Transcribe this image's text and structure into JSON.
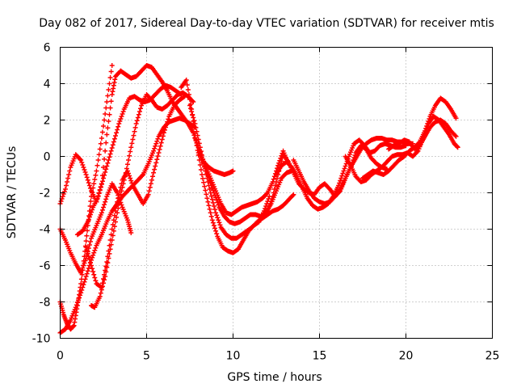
{
  "chart_data": {
    "type": "scatter",
    "title": "Day 082 of 2017, Sidereal Day-to-day VTEC variation (SDTVAR) for receiver mtis",
    "xlabel": "GPS time / hours",
    "ylabel": "SDTVAR / TECUs",
    "xlim": [
      0,
      25
    ],
    "ylim": [
      -10,
      6
    ],
    "xticks": [
      0,
      5,
      10,
      15,
      20,
      25
    ],
    "yticks": [
      -10,
      -8,
      -6,
      -4,
      -2,
      0,
      2,
      4,
      6
    ],
    "grid": true,
    "marker": "+",
    "color": "#ff0000",
    "series": [
      {
        "x": [
          0.0,
          0.3,
          0.6,
          0.9,
          1.2,
          1.5,
          1.8,
          2.1,
          2.4,
          2.7,
          3.0,
          3.2,
          3.5
        ],
        "y": [
          -2.6,
          -1.8,
          -0.6,
          0.1,
          -0.2,
          -1.0,
          -1.9,
          -2.5,
          -1.5,
          1.2,
          3.4,
          4.4,
          4.7
        ]
      },
      {
        "x": [
          3.5,
          3.8,
          4.1,
          4.4,
          4.7,
          5.0,
          5.3,
          5.6,
          5.9,
          6.2,
          6.5,
          6.8,
          7.1,
          7.4,
          7.7,
          8.0,
          8.3,
          8.6,
          8.9,
          9.2,
          9.5,
          9.8,
          10.0
        ],
        "y": [
          4.7,
          4.5,
          4.3,
          4.4,
          4.7,
          5.0,
          4.9,
          4.5,
          4.1,
          3.6,
          3.0,
          2.6,
          2.2,
          1.8,
          1.3,
          0.5,
          -0.3,
          -0.6,
          -0.8,
          -0.9,
          -1.0,
          -0.9,
          -0.8
        ]
      },
      {
        "x": [
          0.0,
          0.3,
          0.6,
          0.9,
          1.2,
          1.5,
          1.8,
          2.1,
          2.4,
          2.7,
          3.0,
          3.3,
          3.6,
          3.9,
          4.1
        ],
        "y": [
          -4.0,
          -4.6,
          -5.3,
          -5.9,
          -6.4,
          -5.6,
          -4.5,
          -3.8,
          -3.1,
          -2.2,
          -1.5,
          -2.0,
          -2.8,
          -3.5,
          -4.2
        ]
      },
      {
        "x": [
          1.0,
          1.3,
          1.6,
          1.9,
          2.2,
          2.5,
          2.8,
          3.1,
          3.4,
          3.7,
          4.0,
          4.3,
          4.6,
          4.9,
          5.2,
          5.5,
          5.8,
          6.1,
          6.4,
          6.7,
          7.0
        ],
        "y": [
          -4.3,
          -4.1,
          -3.6,
          -2.8,
          -2.2,
          -1.2,
          -0.2,
          0.8,
          1.8,
          2.6,
          3.2,
          3.3,
          3.1,
          3.0,
          3.1,
          3.4,
          3.7,
          3.9,
          3.8,
          3.6,
          3.4
        ]
      },
      {
        "x": [
          0.0,
          0.2,
          0.4,
          0.6,
          0.8,
          1.0,
          1.2,
          1.4,
          1.6,
          1.8,
          2.1,
          2.4,
          2.7,
          3.0
        ],
        "y": [
          -8.0,
          -8.7,
          -9.2,
          -9.5,
          -9.3,
          -8.2,
          -7.0,
          -5.5,
          -3.8,
          -2.2,
          -0.8,
          1.0,
          3.0,
          5.0
        ]
      },
      {
        "x": [
          0.0,
          0.3,
          0.6,
          0.9,
          1.2,
          1.5,
          1.8,
          2.1,
          2.4,
          2.7,
          3.0,
          3.3,
          3.6,
          3.9,
          4.2,
          4.5,
          4.8,
          5.1,
          5.4,
          5.7,
          6.0,
          6.3,
          6.6,
          6.9,
          7.2,
          7.5,
          7.8
        ],
        "y": [
          -9.7,
          -9.5,
          -9.0,
          -8.3,
          -7.5,
          -6.6,
          -5.7,
          -4.9,
          -4.3,
          -3.6,
          -3.0,
          -2.6,
          -2.2,
          -1.9,
          -1.6,
          -1.3,
          -1.0,
          -0.4,
          0.3,
          1.1,
          1.6,
          1.9,
          2.0,
          2.1,
          2.0,
          1.8,
          1.6
        ]
      },
      {
        "x": [
          1.8,
          2.0,
          2.3,
          2.6,
          2.9,
          3.2,
          3.5,
          3.8,
          4.1,
          4.4,
          4.7,
          5.0,
          5.3,
          5.6,
          5.9,
          6.2,
          6.5,
          6.8,
          7.1,
          7.4,
          7.7
        ],
        "y": [
          -8.2,
          -8.3,
          -7.7,
          -6.6,
          -5.1,
          -3.6,
          -2.1,
          -0.9,
          0.5,
          1.8,
          2.8,
          3.4,
          3.1,
          2.7,
          2.6,
          2.8,
          3.1,
          3.4,
          3.5,
          3.3,
          3.0
        ]
      },
      {
        "x": [
          1.5,
          1.8,
          2.1,
          2.4,
          2.7,
          3.0,
          3.3,
          3.6,
          3.9,
          4.2,
          4.5,
          4.8,
          5.1,
          5.4,
          5.7,
          6.0,
          6.3,
          6.6,
          6.9,
          7.2
        ],
        "y": [
          -5.0,
          -6.0,
          -7.0,
          -7.2,
          -5.8,
          -4.0,
          -2.5,
          -1.3,
          -0.8,
          -1.6,
          -2.1,
          -2.6,
          -2.1,
          -0.9,
          0.2,
          1.3,
          2.2,
          2.8,
          3.1,
          3.3
        ]
      },
      {
        "x": [
          7.0,
          7.3,
          7.6,
          7.9,
          8.2,
          8.5,
          8.8,
          9.1,
          9.4,
          9.7,
          10.0,
          10.3,
          10.6,
          10.9,
          11.2,
          11.5,
          11.8,
          12.1
        ],
        "y": [
          3.8,
          4.2,
          2.6,
          0.6,
          -1.0,
          -2.3,
          -3.5,
          -4.4,
          -5.0,
          -5.2,
          -5.3,
          -5.1,
          -4.6,
          -4.1,
          -3.8,
          -3.6,
          -3.0,
          -2.2
        ]
      },
      {
        "x": [
          7.5,
          7.8,
          8.1,
          8.4,
          8.7,
          9.0,
          9.3,
          9.6,
          9.9,
          10.2,
          10.5,
          10.8,
          11.1,
          11.4,
          11.7,
          12.0,
          12.3,
          12.6,
          12.9,
          13.2,
          13.5
        ],
        "y": [
          2.8,
          1.8,
          0.5,
          -0.8,
          -2.0,
          -3.1,
          -3.9,
          -4.3,
          -4.5,
          -4.5,
          -4.3,
          -4.1,
          -3.9,
          -3.6,
          -3.4,
          -3.2,
          -3.0,
          -2.9,
          -2.7,
          -2.4,
          -2.1
        ]
      },
      {
        "x": [
          7.8,
          8.1,
          8.4,
          8.7,
          9.0,
          9.3,
          9.6,
          9.9,
          10.2,
          10.5,
          10.8,
          11.1,
          11.4,
          11.7,
          12.0,
          12.3,
          12.6,
          12.9,
          13.2
        ],
        "y": [
          1.0,
          0.2,
          -0.5,
          -1.2,
          -1.9,
          -2.6,
          -3.1,
          -3.2,
          -3.0,
          -2.8,
          -2.7,
          -2.6,
          -2.5,
          -2.3,
          -2.0,
          -1.4,
          -0.5,
          0.3,
          -0.4
        ]
      },
      {
        "x": [
          8.0,
          8.3,
          8.6,
          8.9,
          9.2,
          9.5,
          9.8,
          10.1,
          10.4,
          10.7,
          11.0,
          11.3,
          11.6,
          11.9,
          12.2,
          12.5,
          12.8,
          13.1,
          13.4
        ],
        "y": [
          0.2,
          -0.4,
          -1.2,
          -2.0,
          -2.8,
          -3.3,
          -3.6,
          -3.7,
          -3.6,
          -3.4,
          -3.2,
          -3.2,
          -3.3,
          -3.1,
          -2.6,
          -1.9,
          -1.2,
          -0.9,
          -0.8
        ]
      },
      {
        "x": [
          12.0,
          12.3,
          12.6,
          12.9,
          13.2,
          13.5,
          13.8,
          14.1,
          14.4,
          14.7,
          15.0,
          15.3,
          15.6,
          15.9,
          16.2,
          16.5,
          16.8,
          17.1,
          17.4,
          17.7,
          18.0,
          18.3,
          18.6,
          18.9
        ],
        "y": [
          -3.0,
          -2.2,
          -1.0,
          0.1,
          -0.3,
          -0.9,
          -1.5,
          -1.8,
          -2.0,
          -2.1,
          -1.7,
          -1.5,
          -1.8,
          -2.2,
          -1.9,
          -1.2,
          -0.6,
          0.2,
          0.6,
          0.4,
          -0.1,
          -0.4,
          -0.6,
          -0.7
        ]
      },
      {
        "x": [
          12.5,
          12.8,
          13.1,
          13.4,
          13.7,
          14.0,
          14.3,
          14.6,
          14.9,
          15.2,
          15.5,
          15.8,
          16.1,
          16.4,
          16.7,
          17.0,
          17.3,
          17.6,
          17.9,
          18.2,
          18.5,
          18.8,
          19.1,
          19.4,
          19.7,
          20.0
        ],
        "y": [
          -1.0,
          -0.5,
          -0.3,
          -0.6,
          -1.1,
          -1.7,
          -2.3,
          -2.7,
          -2.9,
          -2.8,
          -2.6,
          -2.2,
          -1.6,
          -0.8,
          0.0,
          0.7,
          0.9,
          0.6,
          0.2,
          0.3,
          0.6,
          0.7,
          0.6,
          0.5,
          0.5,
          0.6
        ]
      },
      {
        "x": [
          13.5,
          13.8,
          14.1,
          14.4,
          14.7,
          15.0,
          15.3,
          15.6,
          15.9,
          16.2,
          16.5,
          16.8,
          17.1,
          17.4,
          17.7,
          18.0,
          18.3,
          18.6,
          18.9,
          19.2,
          19.5,
          19.8,
          20.1,
          20.4
        ],
        "y": [
          -0.2,
          -0.8,
          -1.4,
          -1.9,
          -2.3,
          -2.5,
          -2.6,
          -2.5,
          -2.2,
          -1.8,
          -1.2,
          -0.6,
          -0.1,
          0.4,
          0.7,
          0.9,
          1.0,
          1.0,
          0.9,
          0.9,
          0.8,
          0.8,
          0.7,
          0.7
        ]
      },
      {
        "x": [
          16.5,
          16.8,
          17.1,
          17.4,
          17.7,
          18.0,
          18.3,
          18.6,
          18.9,
          19.2,
          19.5,
          19.8,
          20.1,
          20.4,
          20.7,
          21.0,
          21.3,
          21.6,
          21.9,
          22.2,
          22.5,
          22.8,
          23.0
        ],
        "y": [
          0.0,
          -0.5,
          -1.1,
          -1.4,
          -1.3,
          -1.0,
          -0.8,
          -0.6,
          -0.3,
          0.0,
          0.1,
          0.1,
          0.2,
          0.0,
          0.3,
          1.0,
          1.8,
          2.2,
          2.0,
          1.6,
          1.2,
          0.7,
          0.5
        ]
      },
      {
        "x": [
          17.5,
          17.8,
          18.1,
          18.4,
          18.7,
          19.0,
          19.3,
          19.6,
          19.9,
          20.2,
          20.5,
          20.8,
          21.1,
          21.4,
          21.7,
          22.0,
          22.3,
          22.6,
          22.9
        ],
        "y": [
          -1.2,
          -1.0,
          -0.8,
          -0.9,
          -1.0,
          -0.8,
          -0.5,
          -0.2,
          0.0,
          0.3,
          0.5,
          0.8,
          1.4,
          2.2,
          2.8,
          3.2,
          3.0,
          2.6,
          2.1
        ]
      },
      {
        "x": [
          19.0,
          19.3,
          19.6,
          19.9,
          20.2,
          20.5,
          20.8,
          21.1,
          21.4,
          21.7,
          22.0,
          22.3,
          22.6,
          22.9
        ],
        "y": [
          0.4,
          0.6,
          0.7,
          0.9,
          0.8,
          0.4,
          0.6,
          1.1,
          1.6,
          1.9,
          2.0,
          1.8,
          1.4,
          1.1
        ]
      }
    ]
  }
}
